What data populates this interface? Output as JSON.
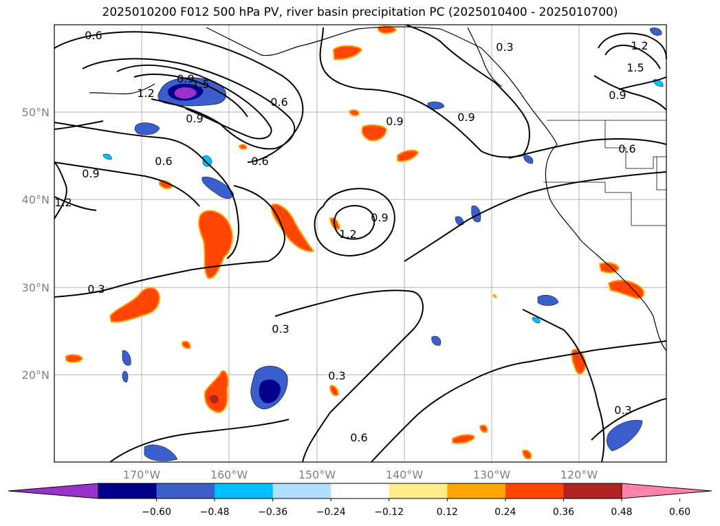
{
  "title": "2025010200 F012 500 hPa PV, river basin precipitation PC (2025010400 - 2025010700)",
  "map": {
    "lon_range": [
      -180,
      -110
    ],
    "lat_range": [
      10,
      60
    ],
    "lat_labels": [
      "20°N",
      "30°N",
      "40°N",
      "50°N"
    ],
    "lon_labels": [
      "170°W",
      "160°W",
      "150°W",
      "140°W",
      "130°W",
      "120°W"
    ],
    "grid_color": "#b0b0b0",
    "contour_labels": [
      "0.6",
      "1.2",
      "1.5",
      "0.9",
      "0.6",
      "0.6",
      "0.9",
      "0.6",
      "0.9",
      "1.2",
      "0.3",
      "0.9",
      "0.9",
      "1.2",
      "0.9",
      "0.3",
      "0.3",
      "0.6",
      "0.3",
      "0.3",
      "1.2",
      "1.5",
      "0.9",
      "0.6"
    ]
  },
  "colorbar": {
    "ticks": [
      "−0.60",
      "−0.48",
      "−0.36",
      "−0.24",
      "−0.12",
      "0.12",
      "0.24",
      "0.36",
      "0.48",
      "0.60"
    ],
    "colors": [
      "#9932cc",
      "#00008b",
      "#3a5fcd",
      "#00bfff",
      "#b0e2ff",
      "#ffffff",
      "#ffec8b",
      "#ffa500",
      "#ff4500",
      "#b22222",
      "#ff82ab"
    ]
  }
}
